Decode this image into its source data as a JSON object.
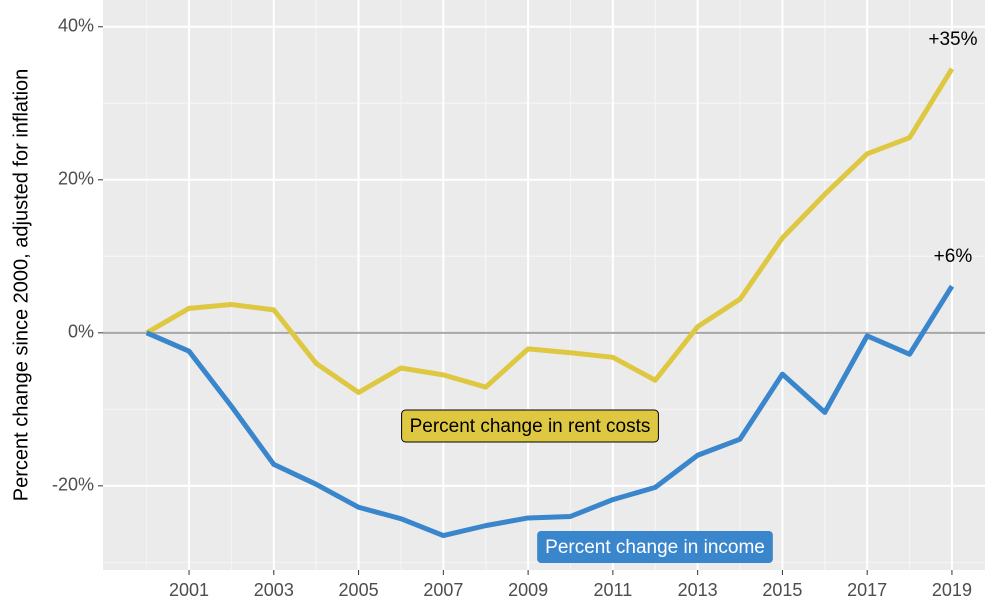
{
  "chart_data": {
    "type": "line",
    "y_axis_label": "Percent change since 2000, adjusted for inflation",
    "x": [
      2000,
      2001,
      2002,
      2003,
      2004,
      2005,
      2006,
      2007,
      2008,
      2009,
      2010,
      2011,
      2012,
      2013,
      2014,
      2015,
      2016,
      2017,
      2018,
      2019
    ],
    "series": [
      {
        "name": "Percent change in rent costs",
        "color": "#dfc841",
        "values": [
          0,
          3.2,
          3.7,
          3.0,
          -4.0,
          -7.8,
          -4.6,
          -5.5,
          -7.1,
          -2.1,
          -2.6,
          -3.2,
          -6.2,
          0.8,
          4.4,
          12.4,
          18.1,
          23.4,
          25.5,
          34.5
        ],
        "end_label": "+35%"
      },
      {
        "name": "Percent change in income",
        "color": "#3a86cc",
        "values": [
          0,
          -2.4,
          -9.6,
          -17.2,
          -19.8,
          -22.8,
          -24.3,
          -26.5,
          -25.2,
          -24.2,
          -24.0,
          -21.8,
          -20.2,
          -16.0,
          -13.9,
          -5.4,
          -10.4,
          -0.4,
          -2.8,
          6.1
        ],
        "end_label": "+6%"
      }
    ],
    "xlim": [
      1998.97,
      2019.78
    ],
    "ylim": [
      -31,
      43.5
    ],
    "xticks": [
      2001,
      2003,
      2005,
      2007,
      2009,
      2011,
      2013,
      2015,
      2017,
      2019
    ],
    "yticks": [
      {
        "value": -20,
        "label": "-20%"
      },
      {
        "value": 0,
        "label": "0%"
      },
      {
        "value": 20,
        "label": "20%"
      },
      {
        "value": 40,
        "label": "40%"
      }
    ],
    "grid": true
  }
}
